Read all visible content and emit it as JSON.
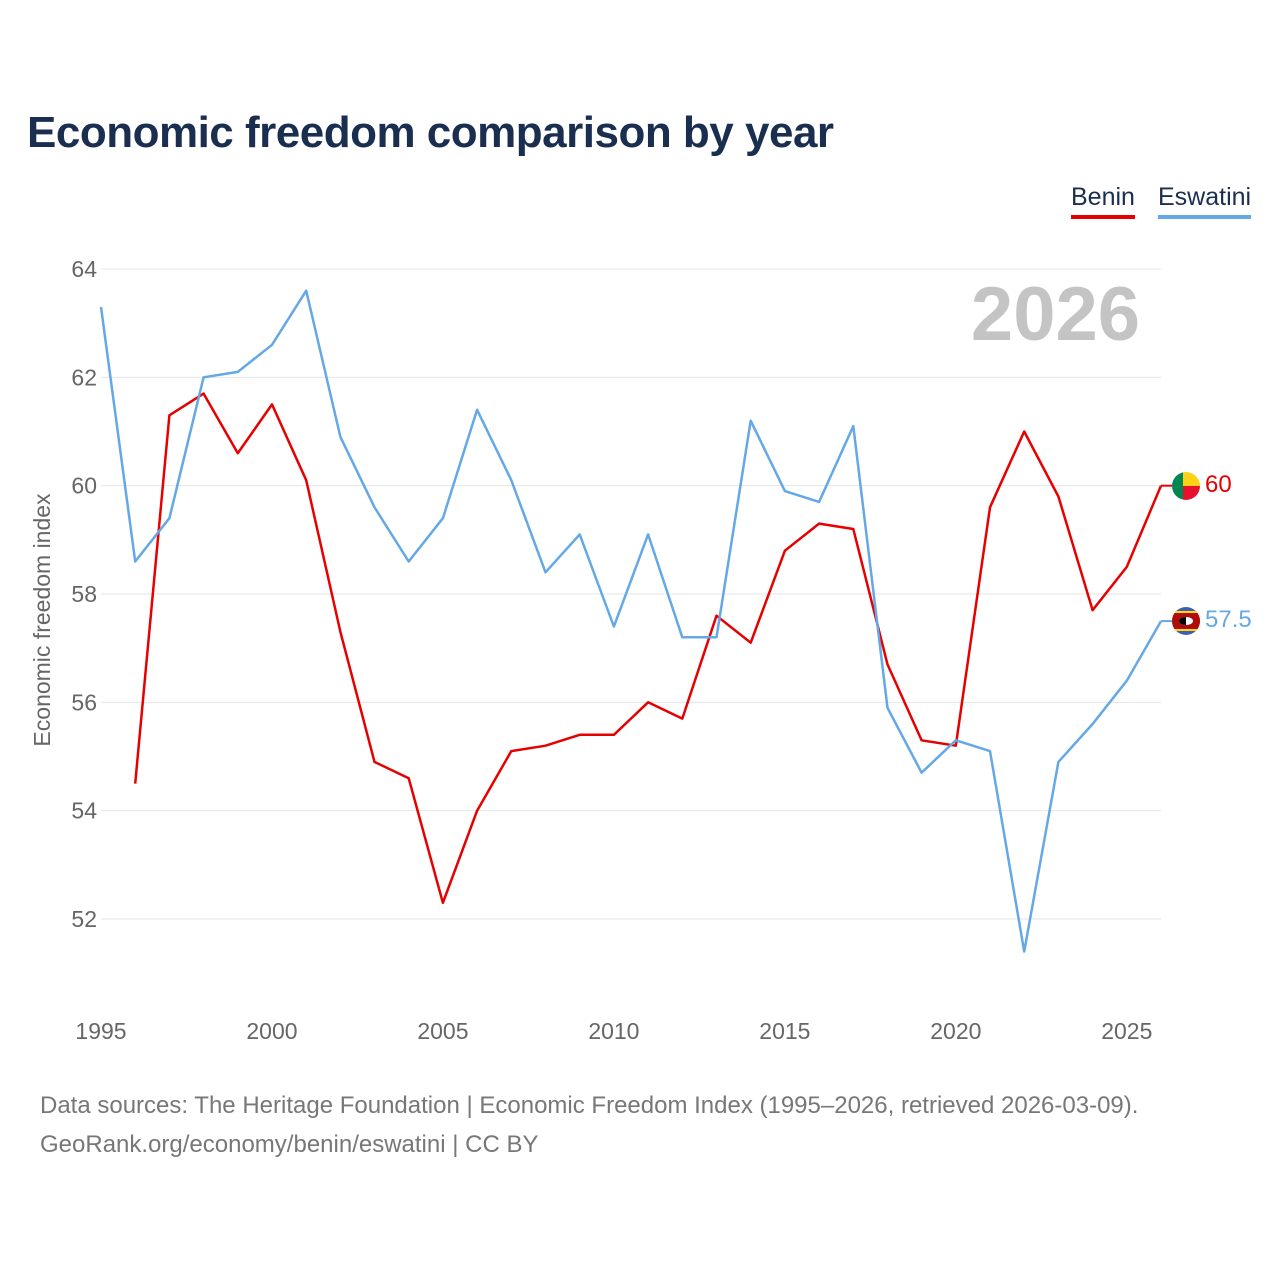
{
  "title": "Economic freedom comparison by year",
  "legend": {
    "benin": "Benin",
    "eswatini": "Eswatini"
  },
  "footer": {
    "line1": "Data sources: The Heritage Foundation | Economic Freedom Index (1995–2026, retrieved 2026-03-09).",
    "line2": "GeoRank.org/economy/benin/eswatini | CC BY"
  },
  "colors": {
    "benin": "#e60000",
    "eswatini": "#64a8e6",
    "grid": "#e6e6e6"
  },
  "chart_data": {
    "type": "line",
    "title": "Economic freedom comparison by year",
    "ylabel": "Economic freedom index",
    "xlabel": "",
    "xlim": [
      1995,
      2026
    ],
    "ylim": [
      51,
      64
    ],
    "yticks": [
      52,
      54,
      56,
      58,
      60,
      62,
      64
    ],
    "xticks": [
      1995,
      2000,
      2005,
      2010,
      2015,
      2020,
      2025
    ],
    "watermark": "2026",
    "series": [
      {
        "name": "Benin",
        "color": "#e60000",
        "end_label": "60",
        "flag_icon": "benin-flag-icon",
        "points": [
          [
            1996,
            54.5
          ],
          [
            1997,
            61.3
          ],
          [
            1998,
            61.7
          ],
          [
            1999,
            60.6
          ],
          [
            2000,
            61.5
          ],
          [
            2001,
            60.1
          ],
          [
            2002,
            57.3
          ],
          [
            2003,
            54.9
          ],
          [
            2004,
            54.6
          ],
          [
            2005,
            52.3
          ],
          [
            2006,
            54.0
          ],
          [
            2007,
            55.1
          ],
          [
            2008,
            55.2
          ],
          [
            2009,
            55.4
          ],
          [
            2010,
            55.4
          ],
          [
            2011,
            56.0
          ],
          [
            2012,
            55.7
          ],
          [
            2013,
            57.6
          ],
          [
            2014,
            57.1
          ],
          [
            2015,
            58.8
          ],
          [
            2016,
            59.3
          ],
          [
            2017,
            59.2
          ],
          [
            2018,
            56.7
          ],
          [
            2019,
            55.3
          ],
          [
            2020,
            55.2
          ],
          [
            2021,
            59.6
          ],
          [
            2022,
            61.0
          ],
          [
            2023,
            59.8
          ],
          [
            2024,
            57.7
          ],
          [
            2025,
            58.5
          ],
          [
            2026,
            60.0
          ]
        ]
      },
      {
        "name": "Eswatini",
        "color": "#64a8e6",
        "end_label": "57.5",
        "flag_icon": "eswatini-flag-icon",
        "points": [
          [
            1995,
            63.3
          ],
          [
            1996,
            58.6
          ],
          [
            1997,
            59.4
          ],
          [
            1998,
            62.0
          ],
          [
            1999,
            62.1
          ],
          [
            2000,
            62.6
          ],
          [
            2001,
            63.6
          ],
          [
            2002,
            60.9
          ],
          [
            2003,
            59.6
          ],
          [
            2004,
            58.6
          ],
          [
            2005,
            59.4
          ],
          [
            2006,
            61.4
          ],
          [
            2007,
            60.1
          ],
          [
            2008,
            58.4
          ],
          [
            2009,
            59.1
          ],
          [
            2010,
            57.4
          ],
          [
            2011,
            59.1
          ],
          [
            2012,
            57.2
          ],
          [
            2013,
            57.2
          ],
          [
            2014,
            61.2
          ],
          [
            2015,
            59.9
          ],
          [
            2016,
            59.7
          ],
          [
            2017,
            61.1
          ],
          [
            2018,
            55.9
          ],
          [
            2019,
            54.7
          ],
          [
            2020,
            55.3
          ],
          [
            2021,
            55.1
          ],
          [
            2022,
            51.4
          ],
          [
            2023,
            54.9
          ],
          [
            2024,
            55.6
          ],
          [
            2025,
            56.4
          ],
          [
            2026,
            57.5
          ]
        ]
      }
    ]
  }
}
